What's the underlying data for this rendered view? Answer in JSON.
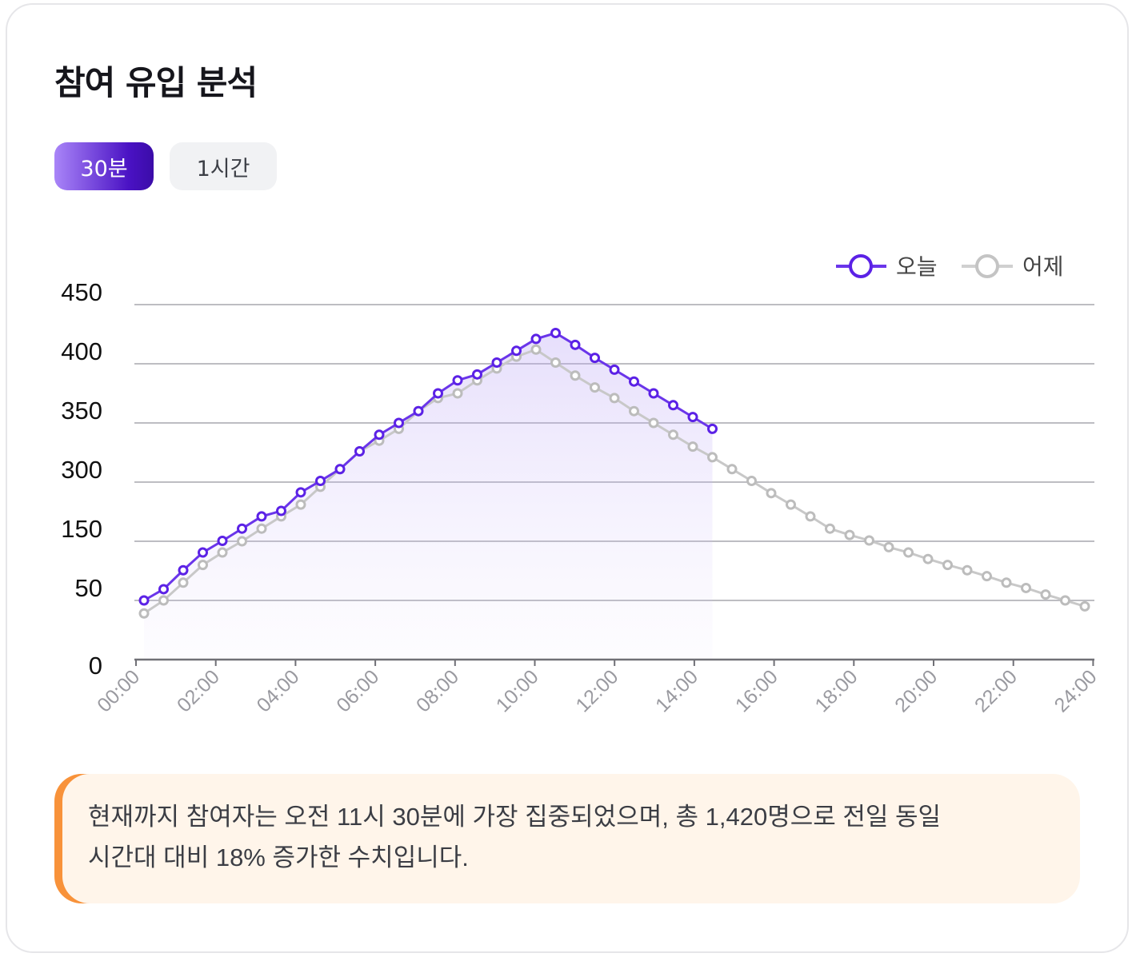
{
  "title": "참여 유입 분석",
  "tabs": [
    {
      "label": "30분",
      "active": true
    },
    {
      "label": "1시간",
      "active": false
    }
  ],
  "colors": {
    "today": "#5b21e6",
    "yesterday": "#c4c4c4",
    "accent_tab": "#4a12c4",
    "note_bar": "#f8923a",
    "note_bg": "#fff5ea"
  },
  "chart_data": {
    "type": "line",
    "legend_position": "top-right",
    "grid": true,
    "y_tick_labels": [
      "0",
      "50",
      "150",
      "300",
      "350",
      "400",
      "450"
    ],
    "x_tick_labels": [
      "00:00",
      "02:00",
      "04:00",
      "06:00",
      "08:00",
      "10:00",
      "12:00",
      "14:00",
      "16:00",
      "18:00",
      "20:00",
      "22:00",
      "24:00"
    ],
    "series": [
      {
        "name": "오늘",
        "area": true,
        "values": [
          50,
          69,
          101,
          131,
          151,
          182,
          213,
          227,
          274,
          301,
          311,
          326,
          340,
          350,
          360,
          375,
          386,
          391,
          401,
          411,
          421,
          426,
          416,
          405,
          395,
          385,
          375,
          365,
          355,
          345
        ]
      },
      {
        "name": "어제",
        "area": false,
        "values": [
          39,
          50,
          80,
          110,
          131,
          150,
          182,
          213,
          243,
          288,
          311,
          326,
          335,
          345,
          360,
          371,
          375,
          386,
          396,
          406,
          412,
          401,
          390,
          380,
          371,
          360,
          350,
          340,
          330,
          321,
          311,
          301,
          272,
          243,
          213,
          182,
          166,
          152,
          140,
          131,
          120,
          110,
          101,
          91,
          80,
          71,
          60,
          50,
          45
        ]
      }
    ]
  },
  "note": {
    "line1": "현재까지 참여자는 오전 11시 30분에 가장 집중되었으며, 총 1,420명으로 전일 동일",
    "line2": "시간대 대비 18% 증가한 수치입니다."
  }
}
